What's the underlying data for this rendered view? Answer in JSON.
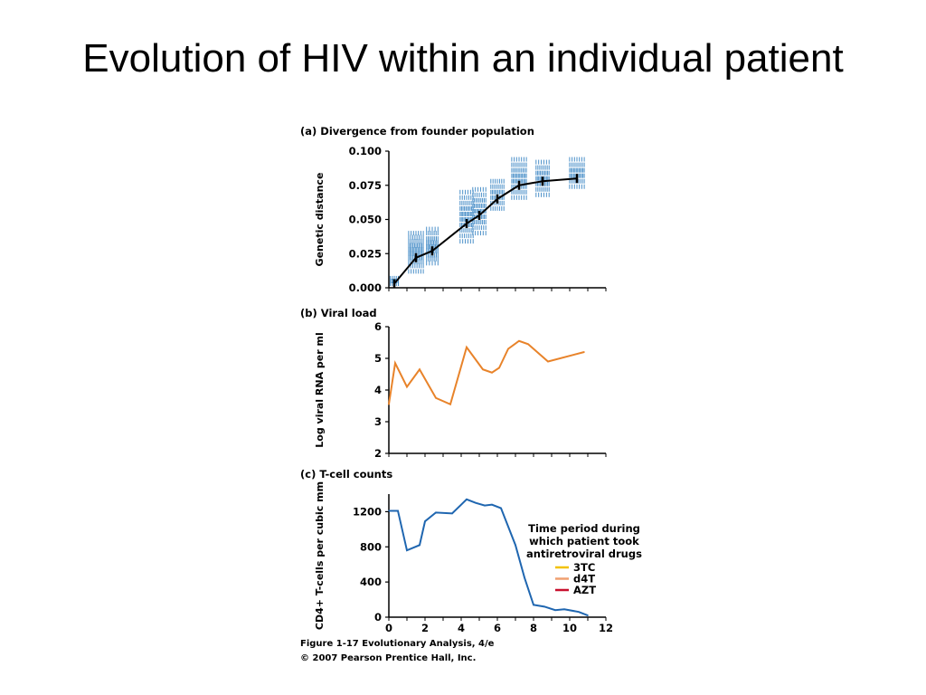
{
  "slide": {
    "title": "Evolution of HIV within an individual patient"
  },
  "caption": {
    "line1": "Figure 1-17  Evolutionary Analysis, 4/e",
    "line2": "© 2007 Pearson Prentice Hall, Inc."
  },
  "colors": {
    "genetic_points": "#4a8fc8",
    "genetic_line": "#000000",
    "viral_line": "#e8832a",
    "tcell_line": "#1f66b0",
    "drug_3TC": "#f2c200",
    "drug_d4T": "#f0a070",
    "drug_AZT": "#c8102e"
  },
  "chart_data": [
    {
      "type": "scatter",
      "title": "(a) Divergence from founder population",
      "ylabel": "Genetic distance",
      "xlabel": "",
      "ylim": [
        0,
        0.1
      ],
      "xlim": [
        0,
        12
      ],
      "yticks": [
        "0.000",
        "0.025",
        "0.050",
        "0.075",
        "0.100"
      ],
      "ytick_values": [
        0,
        0.025,
        0.05,
        0.075,
        0.1
      ],
      "series": [
        {
          "kind": "mean-line",
          "x": [
            0.3,
            1.5,
            2.4,
            4.3,
            5.0,
            6.0,
            7.2,
            8.5,
            10.4
          ],
          "y": [
            0.003,
            0.022,
            0.027,
            0.047,
            0.053,
            0.065,
            0.075,
            0.078,
            0.08
          ]
        }
      ],
      "point_clouds": [
        {
          "x": 0.3,
          "spread": 0.5,
          "ys": [
            0.003,
            0.005,
            0.007
          ]
        },
        {
          "x": 1.5,
          "spread": 0.9,
          "ys": [
            0.012,
            0.016,
            0.019,
            0.022,
            0.025,
            0.028,
            0.031,
            0.034,
            0.037,
            0.04
          ]
        },
        {
          "x": 2.4,
          "spread": 0.7,
          "ys": [
            0.018,
            0.021,
            0.024,
            0.027,
            0.03,
            0.033,
            0.036,
            0.04,
            0.043
          ]
        },
        {
          "x": 4.3,
          "spread": 0.8,
          "ys": [
            0.034,
            0.038,
            0.042,
            0.046,
            0.05,
            0.054,
            0.058,
            0.062,
            0.066,
            0.07
          ]
        },
        {
          "x": 5.0,
          "spread": 0.8,
          "ys": [
            0.04,
            0.044,
            0.048,
            0.052,
            0.056,
            0.06,
            0.064,
            0.068,
            0.072
          ]
        },
        {
          "x": 6.0,
          "spread": 0.8,
          "ys": [
            0.058,
            0.062,
            0.066,
            0.07,
            0.074,
            0.078
          ]
        },
        {
          "x": 7.2,
          "spread": 0.9,
          "ys": [
            0.066,
            0.07,
            0.074,
            0.078,
            0.082,
            0.086,
            0.09,
            0.094
          ]
        },
        {
          "x": 8.5,
          "spread": 0.8,
          "ys": [
            0.068,
            0.072,
            0.076,
            0.08,
            0.084,
            0.088,
            0.092
          ]
        },
        {
          "x": 10.4,
          "spread": 0.9,
          "ys": [
            0.074,
            0.078,
            0.082,
            0.086,
            0.09,
            0.094
          ]
        }
      ],
      "grid": false
    },
    {
      "type": "line",
      "title": "(b) Viral load",
      "ylabel": "Log viral RNA per ml",
      "xlabel": "",
      "ylim": [
        2,
        6
      ],
      "xlim": [
        0,
        12
      ],
      "yticks": [
        "2",
        "3",
        "4",
        "5",
        "6"
      ],
      "ytick_values": [
        2,
        3,
        4,
        5,
        6
      ],
      "series": [
        {
          "x": [
            0,
            0.35,
            1.0,
            1.7,
            2.6,
            3.4,
            4.3,
            5.2,
            5.7,
            6.1,
            6.6,
            7.2,
            7.7,
            8.8,
            10.8
          ],
          "y": [
            3.55,
            4.85,
            4.1,
            4.65,
            3.75,
            3.55,
            5.35,
            4.65,
            4.55,
            4.7,
            5.3,
            5.55,
            5.45,
            4.9,
            5.2
          ]
        }
      ],
      "grid": false
    },
    {
      "type": "line",
      "title": "(c) T-cell counts",
      "ylabel": "CD4+ T-cells per cubic mm",
      "xlabel": "",
      "ylim": [
        0,
        1400
      ],
      "xlim": [
        0,
        12
      ],
      "xticks": [
        "0",
        "2",
        "4",
        "6",
        "8",
        "10",
        "12"
      ],
      "xtick_values": [
        0,
        2,
        4,
        6,
        8,
        10,
        12
      ],
      "yticks": [
        "0",
        "400",
        "800",
        "1200"
      ],
      "ytick_values": [
        0,
        400,
        800,
        1200
      ],
      "series": [
        {
          "x": [
            0,
            0.5,
            1.0,
            1.7,
            2.0,
            2.6,
            3.5,
            4.3,
            4.8,
            5.3,
            5.7,
            6.2,
            7.0,
            7.5,
            8.0,
            8.6,
            9.2,
            9.7,
            10.5,
            11.0
          ],
          "y": [
            1210,
            1210,
            760,
            820,
            1090,
            1190,
            1180,
            1340,
            1300,
            1270,
            1280,
            1240,
            820,
            450,
            140,
            120,
            80,
            90,
            60,
            20
          ]
        }
      ],
      "legend": {
        "title_lines": [
          "Time period during",
          "which patient took",
          "antiretroviral drugs"
        ],
        "entries": [
          {
            "label": "3TC",
            "color": "#f2c200"
          },
          {
            "label": "d4T",
            "color": "#f0a070"
          },
          {
            "label": "AZT",
            "color": "#c8102e"
          }
        ],
        "placement": "right"
      },
      "grid": false
    }
  ]
}
